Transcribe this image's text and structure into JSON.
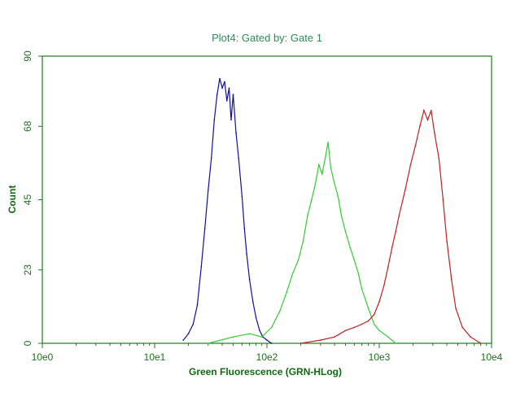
{
  "chart_data": {
    "type": "line",
    "title": "Plot4:  Gated by: Gate 1",
    "xlabel": "Green Fluorescence (GRN-HLog)",
    "ylabel": "Count",
    "x_scale": "log",
    "xlim": [
      1,
      10000
    ],
    "ylim": [
      0,
      90
    ],
    "x_tick_labels": [
      "10e0",
      "10e1",
      "10e2",
      "10e3",
      "10e4"
    ],
    "x_tick_values": [
      1,
      10,
      100,
      1000,
      10000
    ],
    "y_tick_labels": [
      "0",
      "23",
      "45",
      "68",
      "90"
    ],
    "y_tick_values": [
      0,
      23,
      45,
      68,
      90
    ],
    "grid": false,
    "series": [
      {
        "color": "#1010a0",
        "x": [
          18,
          20,
          22,
          24,
          26,
          28,
          30,
          32,
          34,
          36,
          38,
          40,
          42,
          44,
          46,
          48,
          50,
          53,
          56,
          60,
          63,
          66,
          70,
          75,
          80,
          86,
          92,
          100,
          110
        ],
        "y": [
          1,
          3,
          6,
          12,
          24,
          36,
          48,
          58,
          70,
          78,
          83,
          80,
          82,
          76,
          80,
          70,
          78,
          66,
          58,
          46,
          36,
          28,
          20,
          13,
          8,
          4,
          2,
          1,
          0
        ]
      },
      {
        "color": "#33cc33",
        "x": [
          30,
          50,
          70,
          90,
          110,
          130,
          150,
          170,
          190,
          210,
          230,
          250,
          270,
          290,
          310,
          330,
          350,
          370,
          400,
          430,
          460,
          500,
          550,
          600,
          650,
          700,
          800,
          900,
          1000,
          1200,
          1400
        ],
        "y": [
          0,
          2,
          3,
          2,
          5,
          10,
          16,
          22,
          26,
          32,
          40,
          45,
          50,
          56,
          53,
          58,
          63,
          55,
          50,
          46,
          40,
          35,
          30,
          26,
          22,
          17,
          11,
          6,
          4,
          2,
          0
        ]
      },
      {
        "color": "#c02020",
        "x": [
          200,
          300,
          400,
          500,
          600,
          700,
          800,
          900,
          1000,
          1100,
          1200,
          1300,
          1400,
          1500,
          1700,
          1900,
          2100,
          2300,
          2500,
          2700,
          2900,
          3100,
          3400,
          3700,
          4000,
          4400,
          4800,
          5500,
          6500,
          8000
        ],
        "y": [
          0,
          1,
          2,
          4,
          5,
          6,
          7,
          9,
          13,
          18,
          24,
          30,
          35,
          40,
          48,
          56,
          62,
          68,
          73,
          70,
          73,
          66,
          58,
          45,
          32,
          20,
          11,
          5,
          2,
          0
        ]
      }
    ]
  }
}
